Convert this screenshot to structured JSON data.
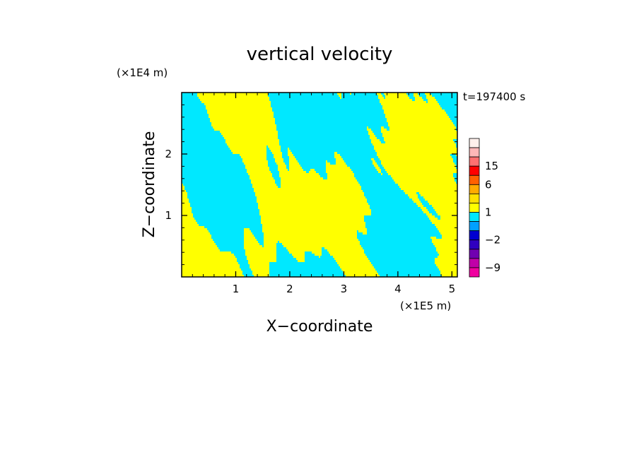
{
  "chart_data": {
    "type": "heatmap",
    "title": "vertical velocity",
    "time_label": "t=197400 s",
    "xlabel": "X−coordinate",
    "ylabel": "Z−coordinate",
    "x_unit": "(×1E5 m)",
    "y_unit": "(×1E4 m)",
    "xlim": [
      0,
      5.1
    ],
    "ylim": [
      0,
      3.0
    ],
    "x_ticks": [
      1,
      2,
      3,
      4,
      5
    ],
    "y_ticks": [
      1,
      2
    ],
    "colors": {
      "positive": "#ffff00",
      "negative": "#00e8ff"
    },
    "colorbar": {
      "levels": [
        -12,
        -9,
        -6,
        -4,
        -2,
        -1,
        0,
        1,
        2,
        4,
        6,
        10,
        15,
        20,
        30
      ],
      "colors": [
        "#f000a0",
        "#c000a8",
        "#7000b0",
        "#3000c0",
        "#0000d0",
        "#00a0ff",
        "#00e8ff",
        "#ffff00",
        "#ffe000",
        "#ffaa00",
        "#ff6000",
        "#ff0000",
        "#ff7070",
        "#ffb8b8",
        "#fff0ec"
      ],
      "labels": [
        {
          "value": 15,
          "text": "15"
        },
        {
          "value": 6,
          "text": "6"
        },
        {
          "value": 1,
          "text": "1"
        },
        {
          "value": -2,
          "text": "−2"
        },
        {
          "value": -9,
          "text": "−9"
        }
      ]
    }
  }
}
